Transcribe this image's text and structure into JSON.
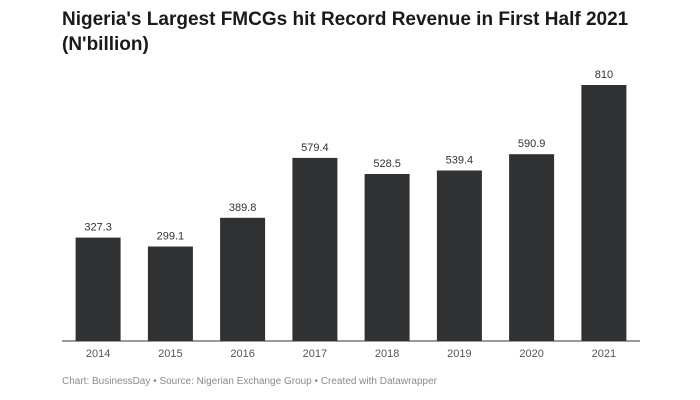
{
  "title": "Nigeria's Largest FMCGs hit Record Revenue in First Half 2021 (N'billion)",
  "chart_data": {
    "type": "bar",
    "title": "Nigeria's Largest FMCGs hit Record Revenue in First Half 2021 (N'billion)",
    "categories": [
      "2014",
      "2015",
      "2016",
      "2017",
      "2018",
      "2019",
      "2020",
      "2021"
    ],
    "values": [
      327.3,
      299.1,
      389.8,
      579.4,
      528.5,
      539.4,
      590.9,
      810
    ],
    "value_labels": [
      "327.3",
      "299.1",
      "389.8",
      "579.4",
      "528.5",
      "539.4",
      "590.9",
      "810"
    ],
    "xlabel": "",
    "ylabel": "",
    "ylim": [
      0,
      810
    ],
    "grid": false,
    "legend": "none",
    "bar_color": "#2f3133"
  },
  "footer": {
    "credit": "Chart: BusinessDay",
    "separator_1": " • ",
    "source": "Source: Nigerian Exchange Group",
    "separator_2": " • ",
    "tool": "Created with Datawrapper"
  }
}
